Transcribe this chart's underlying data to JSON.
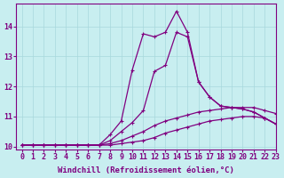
{
  "xlabel": "Windchill (Refroidissement éolien,°C)",
  "background_color": "#c8eef0",
  "grid_color": "#a8d8dc",
  "line_color": "#800080",
  "x_values": [
    0,
    1,
    2,
    3,
    4,
    5,
    6,
    7,
    8,
    9,
    10,
    11,
    12,
    13,
    14,
    15,
    16,
    17,
    18,
    19,
    20,
    21,
    22,
    23
  ],
  "line1_y": [
    10.05,
    10.05,
    10.05,
    10.05,
    10.05,
    10.05,
    10.05,
    10.05,
    10.05,
    10.1,
    10.15,
    10.2,
    10.3,
    10.45,
    10.55,
    10.65,
    10.75,
    10.85,
    10.9,
    10.95,
    11.0,
    11.0,
    10.95,
    10.75
  ],
  "line2_y": [
    10.05,
    10.05,
    10.05,
    10.05,
    10.05,
    10.05,
    10.05,
    10.05,
    10.1,
    10.2,
    10.35,
    10.5,
    10.7,
    10.85,
    10.95,
    11.05,
    11.15,
    11.2,
    11.25,
    11.3,
    11.3,
    11.3,
    11.2,
    11.1
  ],
  "line3_y": [
    10.05,
    10.05,
    10.05,
    10.05,
    10.05,
    10.05,
    10.05,
    10.05,
    10.2,
    10.5,
    10.8,
    11.2,
    12.5,
    12.7,
    13.8,
    13.65,
    12.15,
    11.65,
    11.35,
    11.3,
    11.25,
    11.15,
    10.95,
    10.75
  ],
  "line4_y": [
    10.05,
    10.05,
    10.05,
    10.05,
    10.05,
    10.05,
    10.05,
    10.05,
    10.4,
    10.85,
    12.55,
    13.75,
    13.65,
    13.8,
    14.5,
    13.8,
    12.15,
    11.65,
    11.35,
    11.3,
    11.25,
    11.15,
    10.95,
    10.75
  ],
  "ylim": [
    9.9,
    14.75
  ],
  "xlim": [
    -0.5,
    23
  ],
  "yticks": [
    10,
    11,
    12,
    13,
    14
  ],
  "xticks": [
    0,
    1,
    2,
    3,
    4,
    5,
    6,
    7,
    8,
    9,
    10,
    11,
    12,
    13,
    14,
    15,
    16,
    17,
    18,
    19,
    20,
    21,
    22,
    23
  ],
  "marker": "+",
  "markersize": 3.5,
  "linewidth": 0.9,
  "xlabel_fontsize": 6.5,
  "tick_fontsize": 6.0
}
